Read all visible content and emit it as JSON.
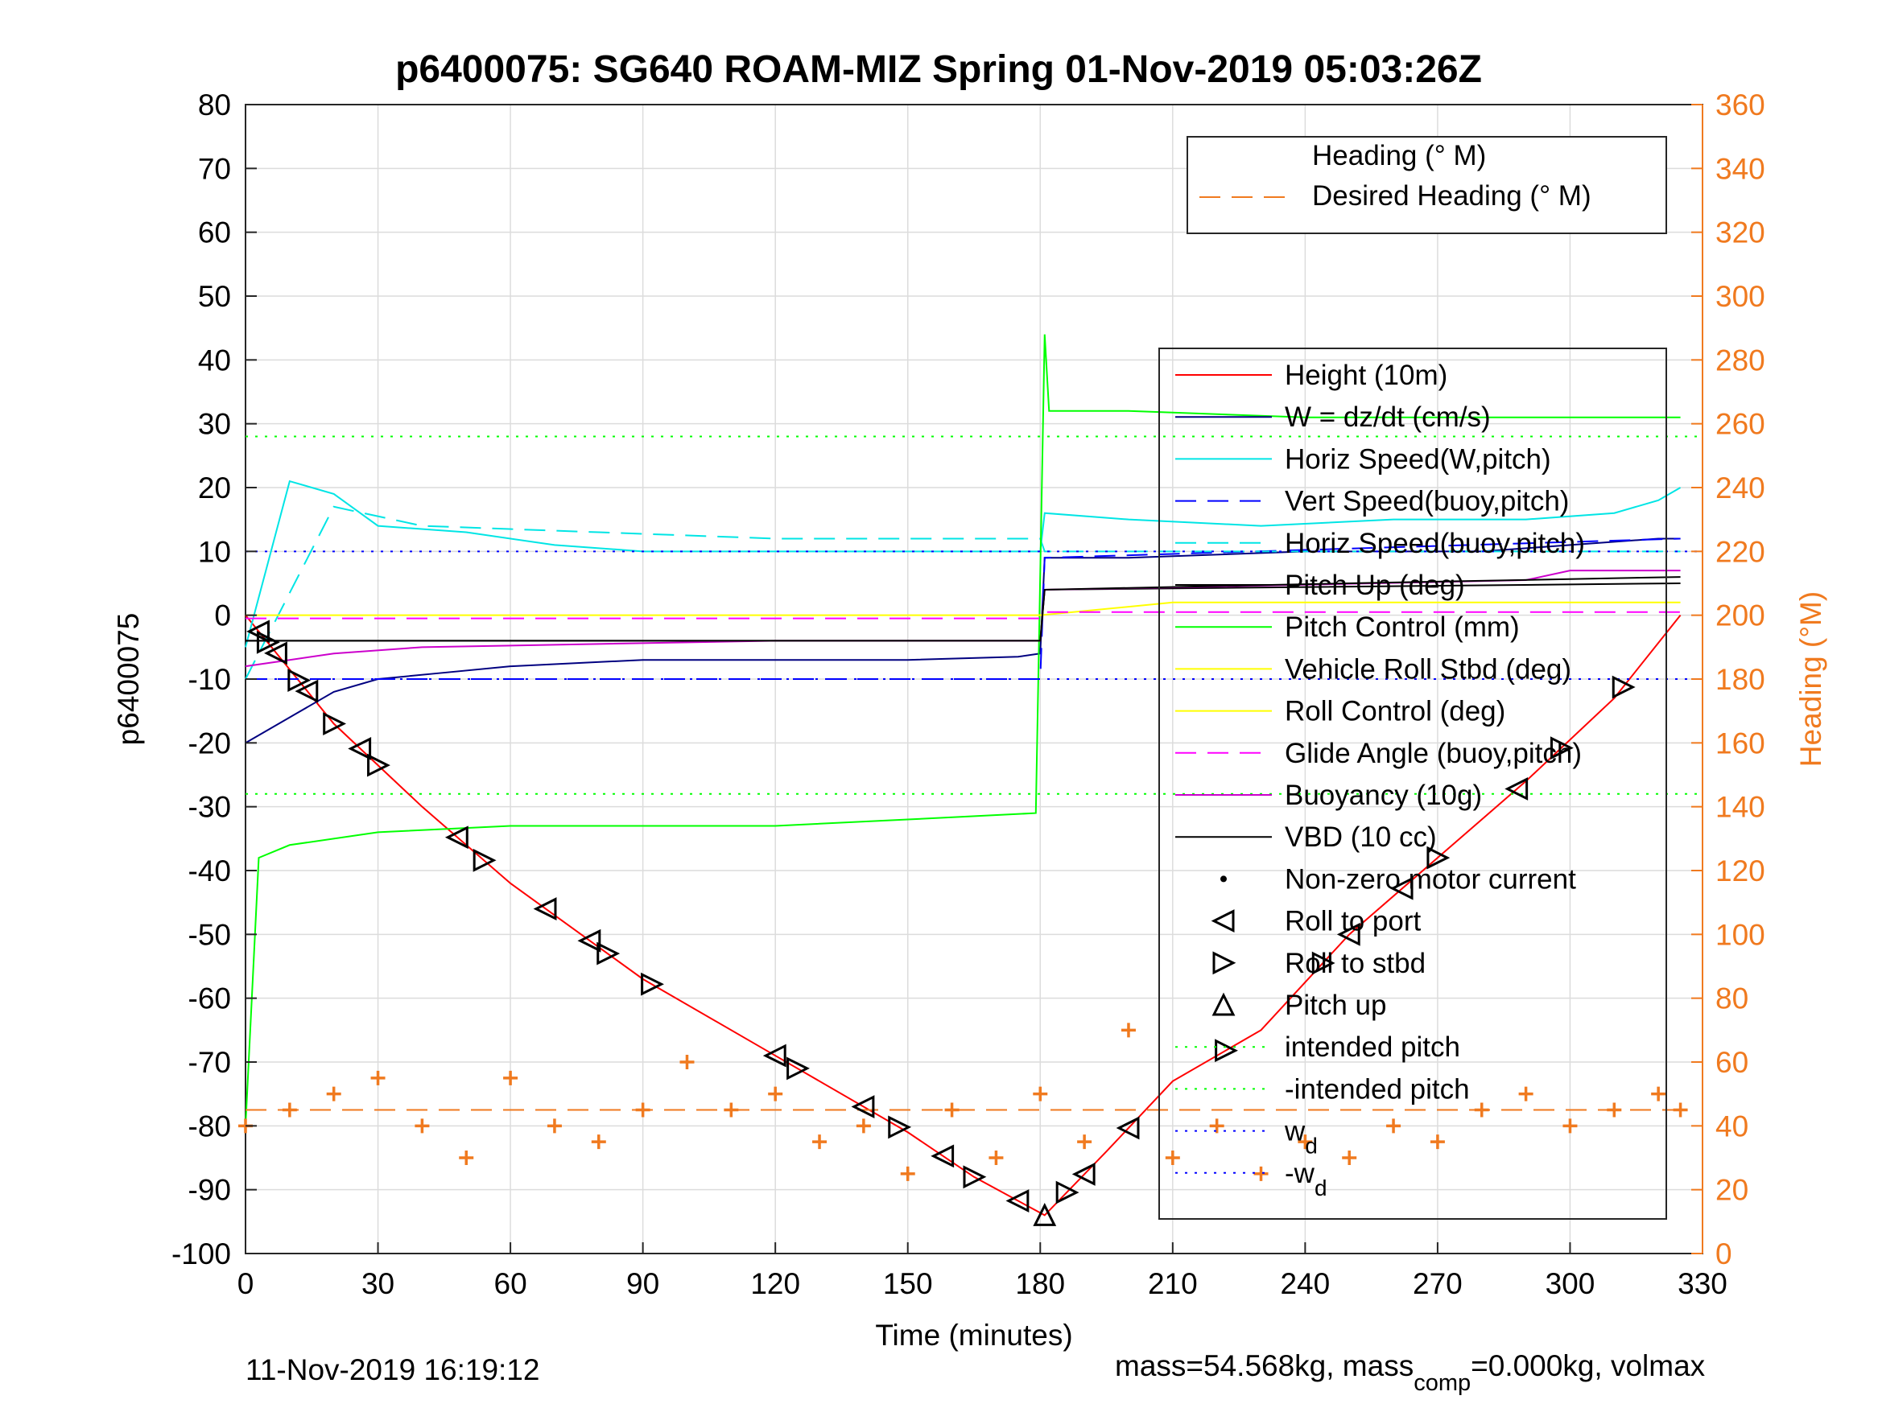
{
  "title": "p6400075: SG640 ROAM-MIZ Spring 01-Nov-2019 05:03:26Z",
  "footer": {
    "timestamp": "11-Nov-2019 16:19:12",
    "mass_prefix": "mass=54.568kg, mass",
    "mass_sub": "comp",
    "mass_suffix": "=0.000kg, volmax"
  },
  "chart_data": {
    "type": "line",
    "title": "p6400075: SG640 ROAM-MIZ Spring 01-Nov-2019 05:03:26Z",
    "xlabel": "Time (minutes)",
    "ylabel": "p6400075",
    "ylabel_right": "Heading (°M)",
    "xlim": [
      0,
      330
    ],
    "ylim": [
      -100,
      80
    ],
    "ylim_right": [
      0,
      360
    ],
    "xticks": [
      "0",
      "30",
      "60",
      "90",
      "120",
      "150",
      "180",
      "210",
      "240",
      "270",
      "300",
      "330"
    ],
    "yticks": [
      "80",
      "70",
      "60",
      "50",
      "40",
      "30",
      "20",
      "10",
      "0",
      "-10",
      "-20",
      "-30",
      "-40",
      "-50",
      "-60",
      "-70",
      "-80",
      "-90",
      "-100"
    ],
    "yticks_right": [
      "360",
      "340",
      "320",
      "300",
      "280",
      "260",
      "240",
      "220",
      "200",
      "180",
      "160",
      "140",
      "120",
      "100",
      "80",
      "60",
      "40",
      "20",
      "0"
    ],
    "grid": true,
    "legend_heading": [
      "Heading (° M)",
      "Desired Heading (° M)"
    ],
    "legend_heading_placement": "top-right",
    "legend_main": [
      "Height (10m)",
      "W = dz/dt (cm/s)",
      "Horiz Speed(W,pitch)",
      "Vert Speed(buoy,pitch)",
      "Horiz Speed(buoy,pitch)",
      "Pitch Up (deg)",
      "Pitch Control (mm)",
      "Vehicle Roll Stbd (deg)",
      "Roll Control (deg)",
      "Glide Angle (buoy,pitch)",
      "Buoyancy (10g)",
      "VBD (10 cc)",
      "Non-zero motor current",
      "Roll to port",
      "Roll to stbd",
      "Pitch up",
      "intended pitch",
      "-intended pitch",
      "w",
      "-w"
    ],
    "legend_main_subs": {
      "18": "d",
      "19": "d"
    },
    "legend_main_placement": "right",
    "colors": {
      "height": "#ff0000",
      "w": "#000080",
      "horiz_speed_w": "#00e5e5",
      "vert_speed_buoy": "#0000ff",
      "horiz_speed_buoy": "#00e5e5",
      "pitch_up": "#000000",
      "pitch_control": "#00ff00",
      "roll": "#ffff00",
      "glide_angle": "#ff00ff",
      "buoyancy": "#cc00cc",
      "vbd": "#000000",
      "heading": "#f07a1f",
      "intended_pitch": "#00ff00",
      "wd": "#0000ff"
    },
    "series": [
      {
        "name": "Height (10m)",
        "x": [
          0,
          20,
          40,
          60,
          90,
          120,
          150,
          165,
          181,
          195,
          210,
          230,
          250,
          270,
          290,
          310,
          325
        ],
        "y": [
          0,
          -17,
          -30,
          -42,
          -57,
          -69,
          -81,
          -88,
          -94,
          -84,
          -73,
          -65,
          -50,
          -38,
          -26,
          -13,
          0
        ]
      },
      {
        "name": "W = dz/dt (cm/s)",
        "x": [
          0,
          10,
          20,
          30,
          45,
          60,
          90,
          120,
          150,
          175,
          180,
          181,
          200,
          240,
          280,
          300,
          320,
          325
        ],
        "y": [
          -20,
          -16,
          -12,
          -10,
          -9,
          -8,
          -7,
          -7,
          -7,
          -6.5,
          -6,
          9,
          9,
          10,
          10,
          11,
          12,
          12
        ]
      },
      {
        "name": "Horiz Speed(W,pitch)",
        "x": [
          0,
          10,
          20,
          30,
          50,
          70,
          90,
          120,
          150,
          180,
          181,
          200,
          230,
          260,
          290,
          310,
          320,
          325
        ],
        "y": [
          -5,
          21,
          19,
          14,
          13,
          11,
          10,
          10,
          10,
          10,
          16,
          15,
          14,
          15,
          15,
          16,
          18,
          20
        ]
      },
      {
        "name": "Vert Speed(buoy,pitch)",
        "x": [
          0,
          180,
          181,
          325
        ],
        "y": [
          -10,
          -10,
          9,
          12
        ]
      },
      {
        "name": "Horiz Speed(buoy,pitch)",
        "x": [
          0,
          20,
          40,
          80,
          120,
          180,
          181,
          220,
          260,
          325
        ],
        "y": [
          -10,
          17,
          14,
          13,
          12,
          12,
          10,
          10,
          10,
          10
        ]
      },
      {
        "name": "Pitch Up (deg)",
        "x": [
          0,
          180,
          181,
          325
        ],
        "y": [
          -4,
          -4,
          4,
          5
        ]
      },
      {
        "name": "Pitch Control (mm)",
        "x": [
          0,
          3,
          10,
          30,
          60,
          90,
          120,
          150,
          179,
          181,
          182,
          200,
          240,
          280,
          325
        ],
        "y": [
          -80,
          -38,
          -36,
          -34,
          -33,
          -33,
          -33,
          -32,
          -31,
          44,
          32,
          32,
          31,
          31,
          31
        ]
      },
      {
        "name": "Vehicle Roll Stbd (deg)",
        "x": [
          0,
          30,
          60,
          90,
          120,
          150,
          180,
          210,
          240,
          270,
          300,
          325
        ],
        "y": [
          0,
          0,
          0,
          0,
          0,
          0,
          0,
          2,
          2,
          2,
          2,
          2
        ]
      },
      {
        "name": "Glide Angle (buoy,pitch)",
        "x": [
          0,
          180,
          181,
          325
        ],
        "y": [
          -0.5,
          -0.5,
          0.5,
          0.5
        ]
      },
      {
        "name": "Buoyancy (10g)",
        "x": [
          0,
          10,
          20,
          40,
          80,
          120,
          180,
          181,
          220,
          290,
          300,
          325
        ],
        "y": [
          -8,
          -7,
          -6,
          -5,
          -4.5,
          -4,
          -4,
          4,
          4.5,
          5.5,
          7,
          7
        ]
      },
      {
        "name": "VBD (10 cc)",
        "x": [
          0,
          180,
          181,
          215,
          250,
          325
        ],
        "y": [
          -4,
          -4,
          4,
          4.5,
          5,
          6
        ]
      },
      {
        "name": "Heading (° M)",
        "axis": "right",
        "x": [
          0,
          10,
          20,
          30,
          40,
          50,
          60,
          70,
          80,
          90,
          100,
          110,
          120,
          130,
          140,
          150,
          160,
          170,
          180,
          190,
          200,
          210,
          220,
          230,
          240,
          250,
          260,
          270,
          280,
          290,
          300,
          310,
          320,
          325
        ],
        "y": [
          40,
          45,
          50,
          55,
          40,
          30,
          55,
          40,
          35,
          45,
          60,
          45,
          50,
          35,
          40,
          25,
          45,
          30,
          50,
          35,
          70,
          30,
          40,
          25,
          35,
          30,
          40,
          35,
          45,
          50,
          40,
          45,
          50,
          45
        ]
      },
      {
        "name": "Desired Heading (° M)",
        "axis": "right",
        "x": [
          0,
          325
        ],
        "y": [
          45,
          45
        ]
      },
      {
        "name": "intended pitch",
        "x": [
          0,
          330
        ],
        "y": [
          28,
          28
        ]
      },
      {
        "name": "-intended pitch",
        "x": [
          0,
          330
        ],
        "y": [
          -28,
          -28
        ]
      },
      {
        "name": "w",
        "x": [
          0,
          330
        ],
        "y": [
          10,
          10
        ]
      },
      {
        "name": "-w",
        "x": [
          0,
          330
        ],
        "y": [
          -10,
          -10
        ]
      }
    ],
    "markers": {
      "roll_to_port_x": [
        3,
        7,
        14,
        26,
        48,
        68,
        78,
        120,
        140,
        158,
        175,
        190,
        200,
        250,
        262,
        288
      ],
      "roll_to_stbd_x": [
        5,
        12,
        20,
        30,
        54,
        82,
        92,
        125,
        148,
        165,
        186,
        222,
        244,
        270,
        298,
        312
      ],
      "pitch_up_x": [
        181
      ]
    }
  }
}
